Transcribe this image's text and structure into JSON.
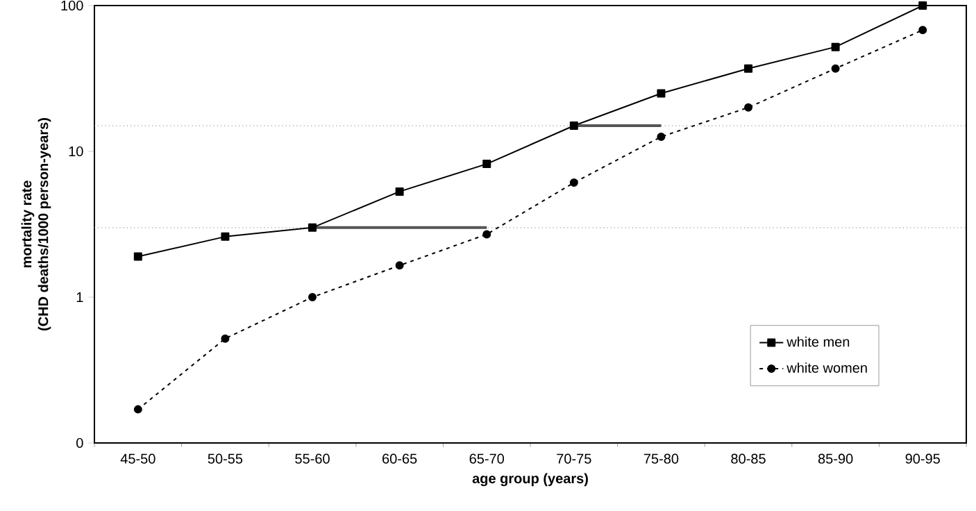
{
  "chart_data": {
    "type": "line",
    "xlabel": "age group (years)",
    "ylabel": "mortality rate\n(CHD deaths/1000 person-years)",
    "categories": [
      "45-50",
      "50-55",
      "55-60",
      "60-65",
      "65-70",
      "70-75",
      "75-80",
      "80-85",
      "85-90",
      "90-95"
    ],
    "log": "y",
    "ylim": [
      0.1,
      100
    ],
    "yticks": [
      {
        "value": 0.1,
        "label": "0"
      },
      1,
      10,
      100
    ],
    "series": [
      {
        "name": "white men",
        "color": "#000000",
        "marker": "square",
        "line_style": "solid",
        "values": [
          1.9,
          2.6,
          3.0,
          5.3,
          8.2,
          15,
          25,
          37,
          52,
          100
        ]
      },
      {
        "name": "white women",
        "color": "#000000",
        "marker": "circle",
        "line_style": "dashed",
        "values": [
          0.17,
          0.52,
          1.0,
          1.65,
          2.7,
          6.1,
          12.6,
          20,
          37,
          68
        ]
      },
      {
        "color": "#555555",
        "marker": "none",
        "line_style": "solid",
        "values": [
          null,
          null,
          3.0,
          3.0,
          3.0,
          null,
          null,
          null,
          null,
          null
        ]
      },
      {
        "color": "#555555",
        "marker": "none",
        "line_style": "solid",
        "values": [
          null,
          null,
          null,
          null,
          null,
          15,
          15,
          null,
          null,
          null
        ]
      }
    ],
    "ref_lines": [
      {
        "axis": "y",
        "value": 3.0,
        "color": "#999999",
        "line_style": "dotted"
      },
      {
        "axis": "y",
        "value": 15,
        "color": "#999999",
        "line_style": "dotted"
      }
    ],
    "legend": "bottom right",
    "grid": false
  }
}
